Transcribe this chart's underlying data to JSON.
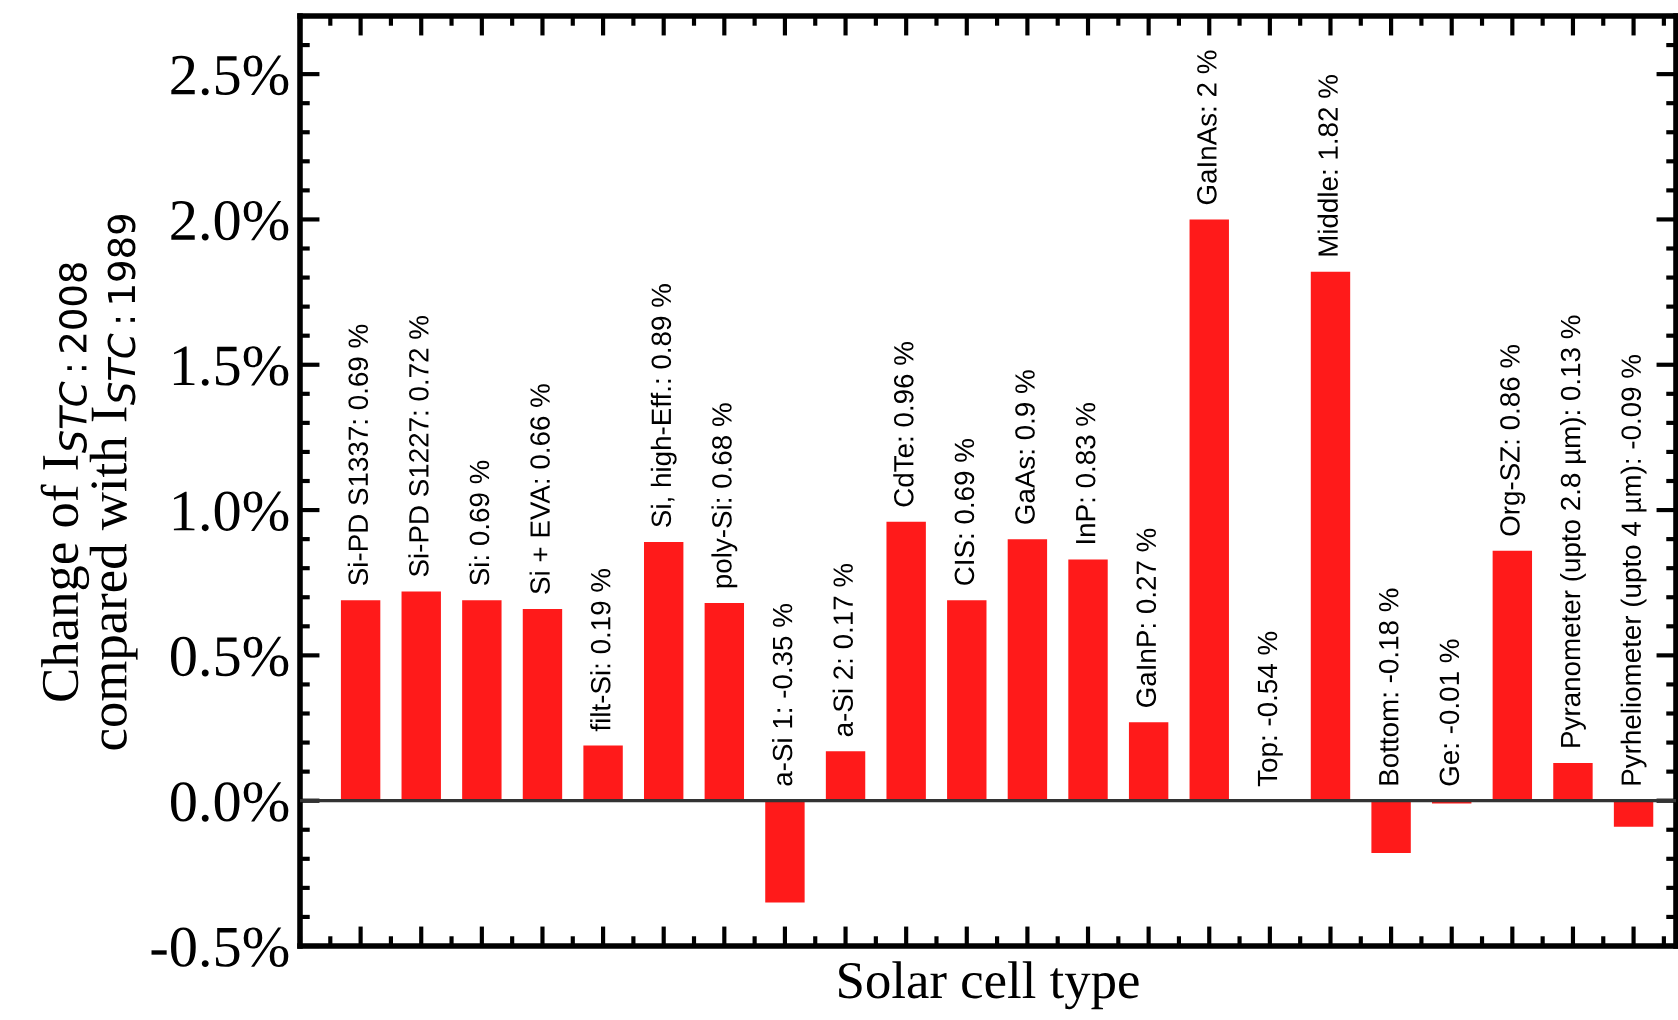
{
  "chart_data": {
    "type": "bar",
    "xlabel": "Solar cell type",
    "ylabel": "Change of I$_{STC:2008}$\ncompared with I$_{STC:1989}$",
    "categories": [
      null,
      null,
      null,
      null,
      null,
      null,
      null,
      null,
      null,
      null,
      null,
      null,
      null,
      null,
      null,
      null,
      null,
      null,
      null,
      null,
      null,
      null
    ],
    "values": [
      0.69,
      0.72,
      0.69,
      0.66,
      0.19,
      0.89,
      0.68,
      -0.35,
      0.17,
      0.96,
      0.69,
      0.9,
      0.83,
      0.27,
      2,
      null,
      1.82,
      -0.18,
      -0.01,
      0.86,
      0.13,
      -0.09
    ],
    "value_labels": [
      "Si-PD S1337: 0.69 %",
      "Si-PD S1227: 0.72 %",
      "Si: 0.69 %",
      "Si + EVA: 0.66 %",
      "filt-Si: 0.19 %",
      "Si, high-Eff.: 0.89 %",
      "poly-Si: 0.68 %",
      "a-Si 1: -0.35 %",
      "a-Si 2: 0.17 %",
      "CdTe: 0.96 %",
      "CIS: 0.69 %",
      "GaAs: 0.9 %",
      "InP: 0.83 %",
      "GaInP: 0.27 %",
      "GaInAs: 2 %",
      "Top: -0.54 %",
      "Middle: 1.82 %",
      "Bottom: -0.18 %",
      "Ge: -0.01 %",
      "Org-SZ: 0.86 %",
      "Pyranometer (upto 2.8 µm): 0.13 %",
      "Pyrheliometer (upto 4 µm): -0.09 %"
    ],
    "color": "#ff1a1a",
    "ylim": [
      -0.5,
      2.7
    ],
    "yticks": [
      {
        "value": -0.5,
        "label": "-0.5%"
      },
      {
        "value": 0.0,
        "label": "0.0%"
      },
      {
        "value": 0.5,
        "label": "0.5%"
      },
      {
        "value": 1.0,
        "label": "1.0%"
      },
      {
        "value": 1.5,
        "label": "1.5%"
      },
      {
        "value": 2.0,
        "label": "2.0%"
      },
      {
        "value": 2.5,
        "label": "2.5%"
      }
    ],
    "ref_lines": [
      {
        "axis": "y",
        "value": 0,
        "color": "#333333"
      }
    ],
    "grid": false,
    "legend": false
  }
}
